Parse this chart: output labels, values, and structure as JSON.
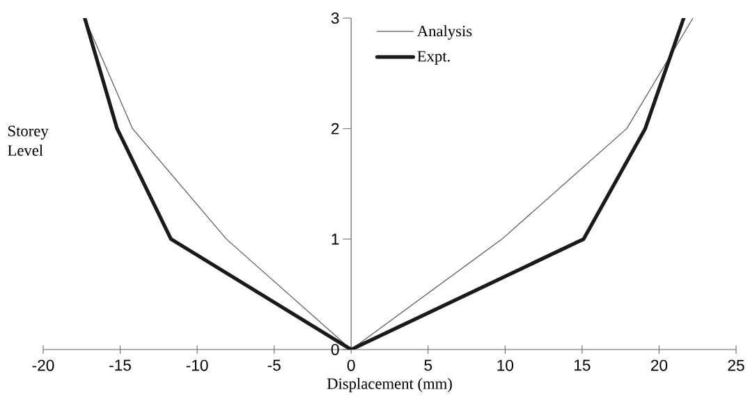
{
  "chart_data": {
    "type": "line",
    "xlabel": "Displacement (mm)",
    "ylabel": "Storey Level",
    "xlim": [
      -20,
      25
    ],
    "ylim": [
      0,
      3
    ],
    "xticks": [
      -20,
      -15,
      -10,
      -5,
      0,
      5,
      10,
      15,
      20,
      25
    ],
    "yticks": [
      0,
      1,
      2,
      3
    ],
    "legend": "top",
    "grid": false,
    "marker": "none",
    "line_style": "solid",
    "series": [
      {
        "name": "Analysis",
        "color": "#555555",
        "x": [
          -17.3,
          -14.2,
          -8.1,
          0,
          9.8,
          17.9,
          22.2
        ],
        "values": [
          3,
          2,
          1,
          0,
          1,
          2,
          3
        ]
      },
      {
        "name": "Expt.",
        "color": "#1a1a1a",
        "x": [
          -17.3,
          -15.2,
          -11.7,
          0,
          15.1,
          19.1,
          21.6
        ],
        "values": [
          3,
          2,
          1,
          0,
          1,
          2,
          3
        ]
      }
    ]
  }
}
